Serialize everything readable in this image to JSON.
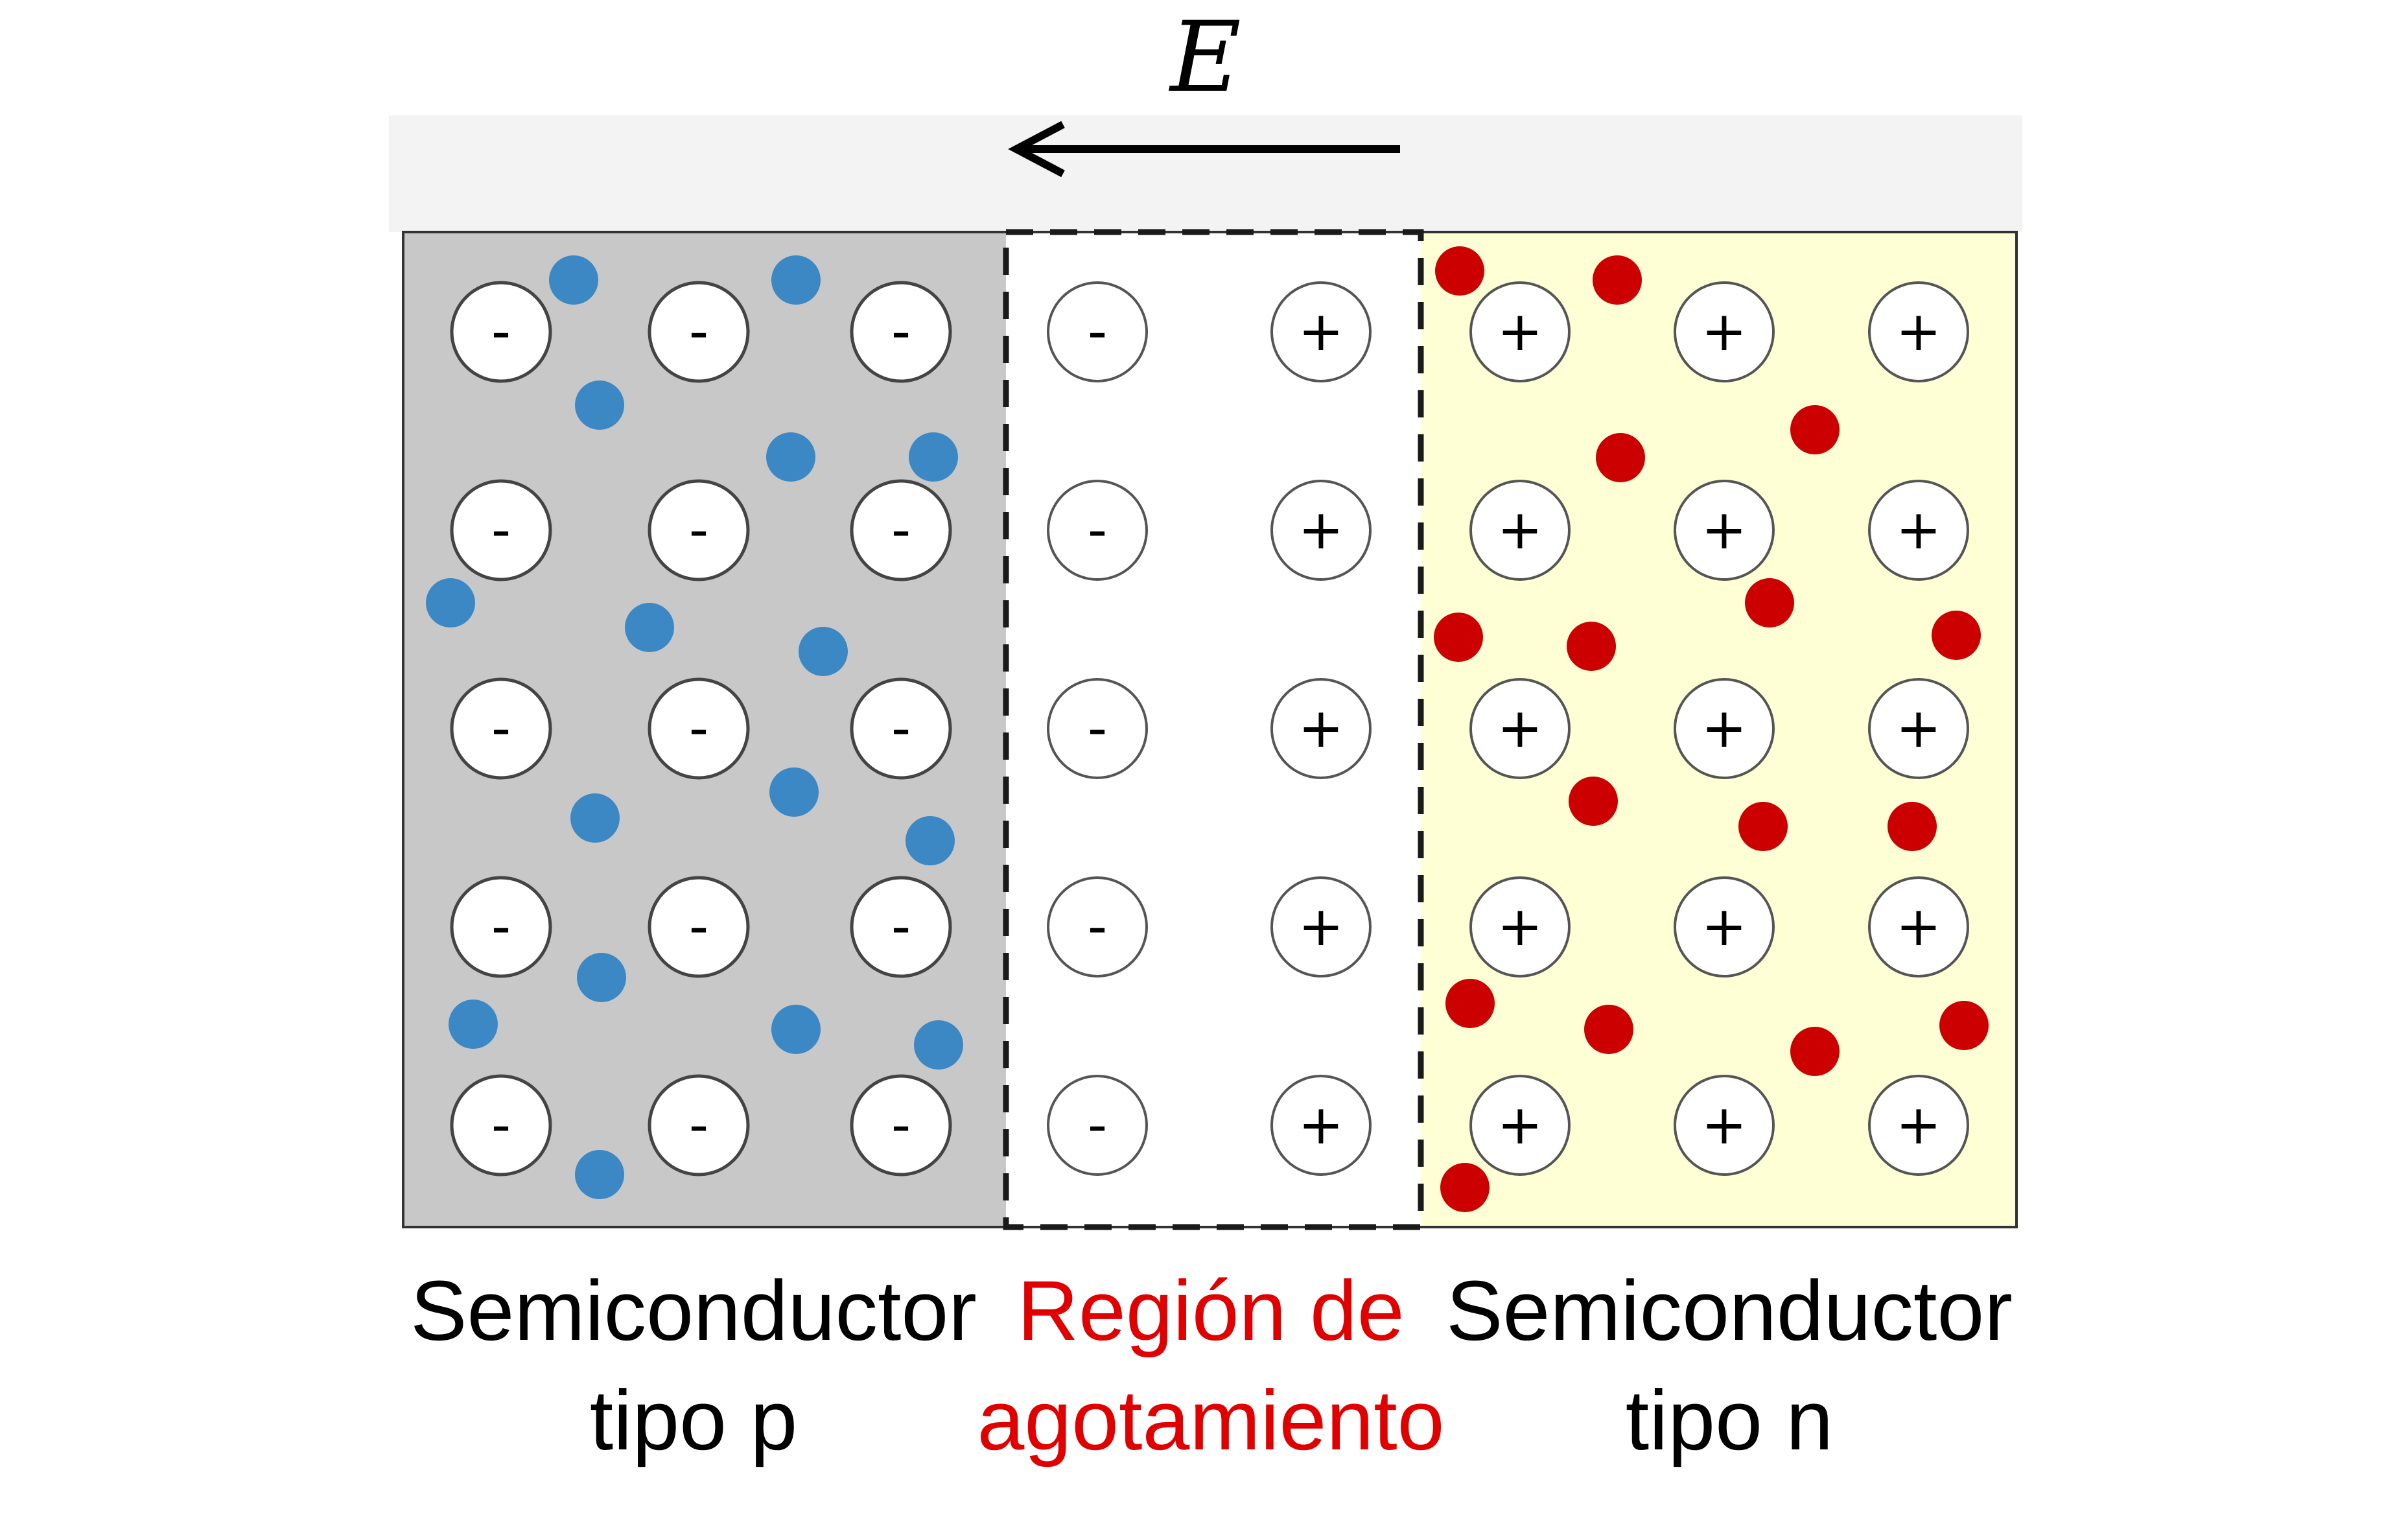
{
  "field": {
    "symbol": "E",
    "direction": "left"
  },
  "regions": {
    "p": {
      "label_line1": "Semiconductor",
      "label_line2": "tipo p",
      "fill": "#c8c8c8",
      "ion_sign": "-"
    },
    "depletion": {
      "label_line1": "Región de",
      "label_line2": "agotamiento",
      "fill": "#ffffff",
      "label_color": "#e00000"
    },
    "n": {
      "label_line1": "Semiconductor",
      "label_line2": "tipo n",
      "fill": "#ffffd6",
      "ion_sign": "+"
    }
  },
  "carriers": {
    "p_color": "#3b88c4",
    "n_color": "#cc0000"
  },
  "colors": {
    "label_text": "#000000",
    "depletion_label": "#e00000",
    "top_band": "#f3f3f3",
    "border": "#000000"
  }
}
